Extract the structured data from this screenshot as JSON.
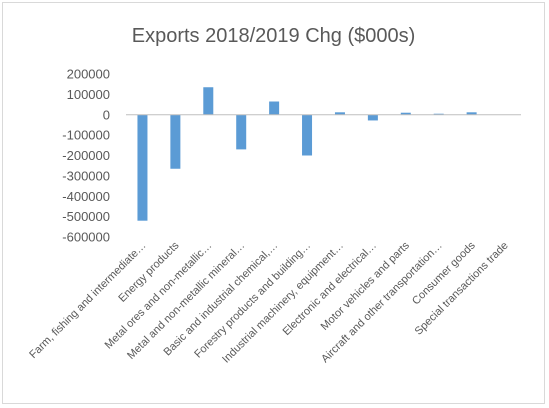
{
  "chart_data": {
    "type": "bar",
    "title": "Exports 2018/2019 Chg ($000s)",
    "xlabel": "",
    "ylabel": "",
    "ylim": [
      -600000,
      200000
    ],
    "ytick_step": 100000,
    "yticks": [
      "200000",
      "100000",
      "0",
      "-100000",
      "-200000",
      "-300000",
      "-400000",
      "-500000",
      "-600000"
    ],
    "grid": false,
    "legend": "none",
    "bar_color": "#5b9bd5",
    "categories": [
      "Farm, fishing and intermediate…",
      "Energy products",
      "Metal ores and non-metallic…",
      "Metal and non-metallic mineral…",
      "Basic and industrial chemical,…",
      "Forestry products and building…",
      "Industrial machinery, equipment…",
      "Electronic and electrical…",
      "Motor vehicles and parts",
      "Aircraft and other transportation…",
      "Consumer goods",
      "Special transactions trade"
    ],
    "values": [
      -520000,
      -265000,
      135000,
      -170000,
      65000,
      -200000,
      12000,
      -28000,
      10000,
      5000,
      12000,
      0
    ]
  }
}
